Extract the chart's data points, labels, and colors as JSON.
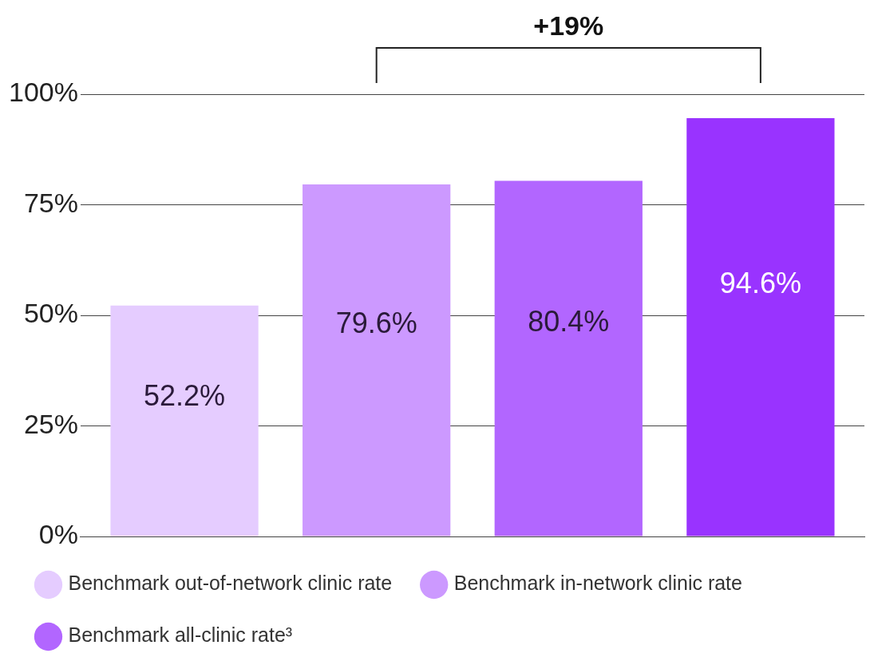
{
  "chart_data": {
    "type": "bar",
    "categories": [
      null
    ],
    "series": [
      {
        "name": "Benchmark out-of-network clinic rate",
        "color": "#e5ccff",
        "values": [
          52.2
        ],
        "value_labels": [
          "52.2%"
        ]
      },
      {
        "name": "Benchmark in-network clinic rate",
        "color": "#cc99ff",
        "values": [
          79.6
        ],
        "value_labels": [
          "79.6%"
        ]
      },
      {
        "name": "Benchmark all-clinic rate³",
        "color": "#b266ff",
        "values": [
          80.4
        ],
        "value_labels": [
          "80.4%"
        ]
      },
      {
        "color": "#9933ff",
        "values": [
          94.6
        ],
        "value_labels": [
          "94.6%"
        ]
      }
    ],
    "ylim": [
      0,
      100
    ],
    "yticks": [
      {
        "value": 0,
        "label": "0%"
      },
      {
        "value": 25,
        "label": "25%"
      },
      {
        "value": 50,
        "label": "50%"
      },
      {
        "value": 75,
        "label": "75%"
      },
      {
        "value": 100,
        "label": "100%"
      }
    ],
    "grid": "y",
    "tick_labels": "y",
    "legend": "bottom",
    "annotations": [
      "+19%"
    ]
  }
}
